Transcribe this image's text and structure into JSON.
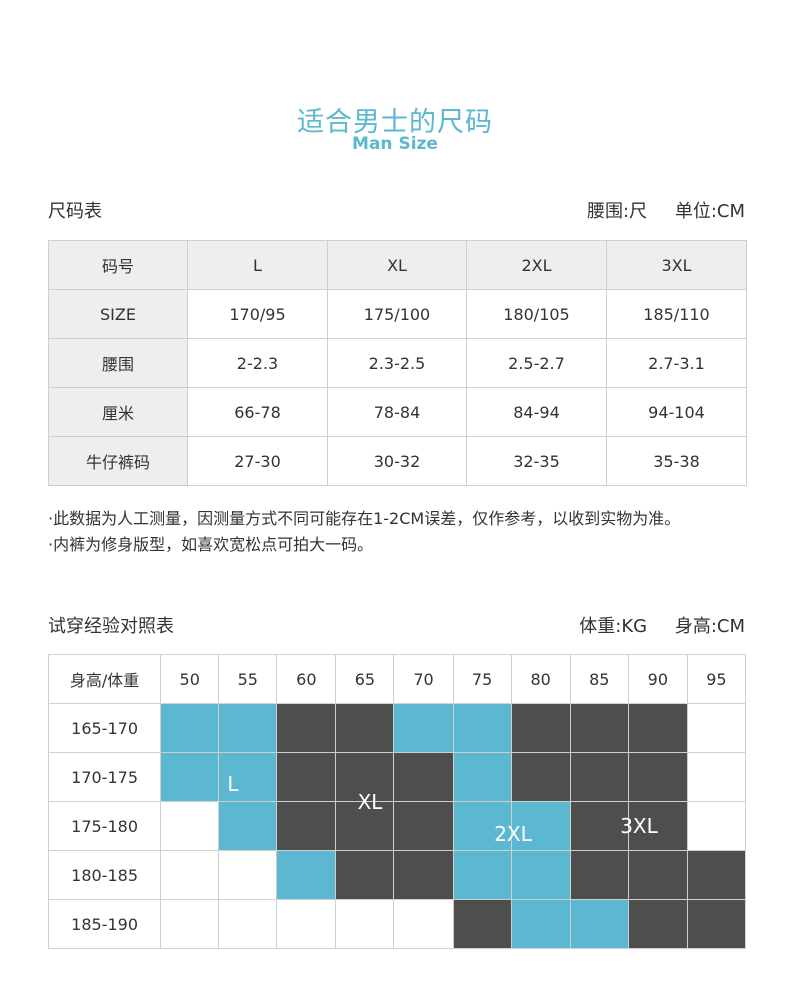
{
  "title": {
    "cn": "适合男士的尺码",
    "en": "Man Size"
  },
  "size_section": {
    "heading": "尺码表",
    "unit_waist": "腰围:尺",
    "unit": "单位:CM"
  },
  "size_table": {
    "header": [
      "码号",
      "L",
      "XL",
      "2XL",
      "3XL"
    ],
    "rows": [
      [
        "SIZE",
        "170/95",
        "175/100",
        "180/105",
        "185/110"
      ],
      [
        "腰围",
        "2-2.3",
        "2.3-2.5",
        "2.5-2.7",
        "2.7-3.1"
      ],
      [
        "厘米",
        "66-78",
        "78-84",
        "84-94",
        "94-104"
      ],
      [
        "牛仔裤码",
        "27-30",
        "30-32",
        "32-35",
        "35-38"
      ]
    ]
  },
  "notes": [
    "·此数据为人工测量，因测量方式不同可能存在1-2CM误差，仅作参考，以收到实物为准。",
    "·内裤为修身版型，如喜欢宽松点可拍大一码。"
  ],
  "fit_section": {
    "heading": "试穿经验对照表",
    "unit_weight": "体重:KG",
    "unit_height": "身高:CM"
  },
  "fit_table": {
    "corner": "身高/体重",
    "weights": [
      "50",
      "55",
      "60",
      "65",
      "70",
      "75",
      "80",
      "85",
      "90",
      "95"
    ],
    "heights": [
      "165-170",
      "170-175",
      "175-180",
      "180-185",
      "185-190"
    ],
    "grid": [
      [
        "L",
        "L",
        "XL",
        "XL",
        "2XL",
        "2XL",
        "3XL",
        "3XL",
        "3XL",
        ""
      ],
      [
        "L",
        "L",
        "XL",
        "XL",
        "XL",
        "2XL",
        "3XL",
        "3XL",
        "3XL",
        ""
      ],
      [
        "",
        "L",
        "XL",
        "XL",
        "XL",
        "2XL",
        "2XL",
        "3XL",
        "3XL",
        ""
      ],
      [
        "",
        "",
        "L",
        "XL",
        "XL",
        "2XL",
        "2XL",
        "3XL",
        "3XL",
        "3XL"
      ],
      [
        "",
        "",
        "",
        "",
        "",
        "XL",
        "2XL",
        "2XL",
        "3XL",
        "3XL"
      ]
    ],
    "zone_labels": [
      "L",
      "XL",
      "2XL",
      "3XL"
    ],
    "colors": {
      "L": "#5bb8d0",
      "2XL": "#5bb8d0",
      "XL": "#4e4e4e",
      "3XL": "#4e4e4e",
      "empty": "#ffffff"
    }
  }
}
